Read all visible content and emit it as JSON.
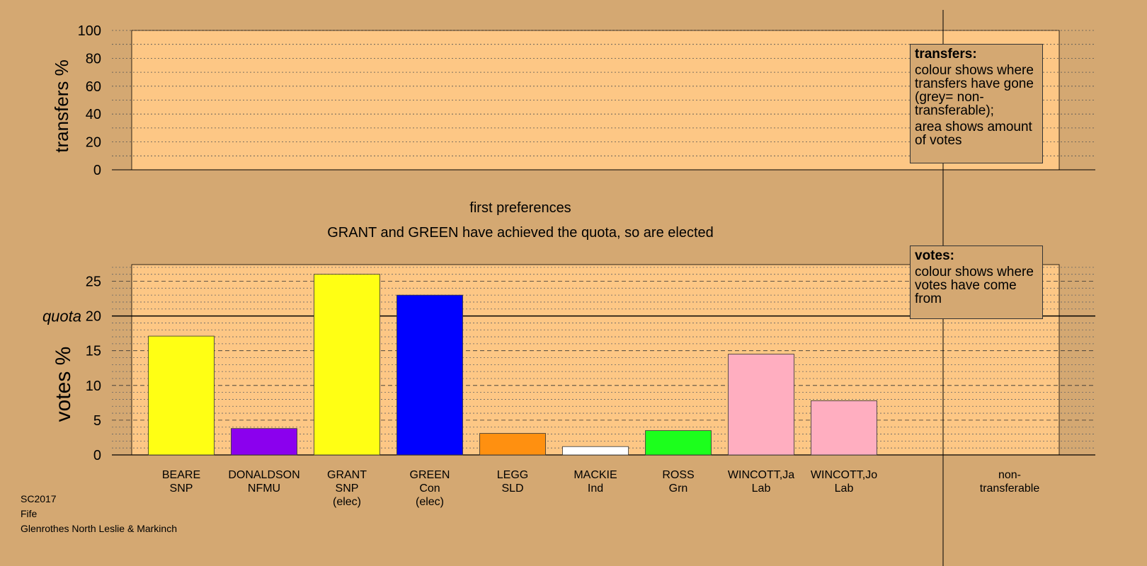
{
  "page": {
    "subtitle": "first preferences",
    "message": "GRANT and GREEN have achieved the quota, so are elected"
  },
  "legend_transfers": {
    "title": "transfers:",
    "line1": "colour shows where transfers have gone (grey= non-transferable);",
    "line2": "area shows amount of votes"
  },
  "legend_votes": {
    "title": "votes:",
    "line1": "colour shows where votes have come from"
  },
  "footer": {
    "election": "SC2017",
    "council": "Fife",
    "ward": "Glenrothes North Leslie & Markinch"
  },
  "colors": {
    "background": "#d4a872",
    "plot_background": "#fdc785",
    "snp": "#ffff14",
    "nfmu": "#8b00ee",
    "con": "#0000ff",
    "sld": "#ff9010",
    "ind": "#ffffff",
    "grn": "#1cff1c",
    "lab": "#ffaec0"
  },
  "chart_data": [
    {
      "type": "bar",
      "title": "",
      "ylabel": "transfers %",
      "ylim": [
        0,
        100
      ],
      "yticks": [
        0,
        20,
        40,
        60,
        80,
        100
      ],
      "categories": [],
      "values": [],
      "grid": true
    },
    {
      "type": "bar",
      "title": "",
      "ylabel": "votes %",
      "ylim": [
        0,
        27
      ],
      "yticks": [
        0,
        5,
        10,
        15,
        20,
        25
      ],
      "quota": 20,
      "quota_label": "quota",
      "grid": true,
      "categories": [
        {
          "name": "BEARE",
          "party": "SNP",
          "status": "",
          "value": 17.1,
          "color": "#ffff14"
        },
        {
          "name": "DONALDSON",
          "party": "NFMU",
          "status": "",
          "value": 3.8,
          "color": "#8b00ee"
        },
        {
          "name": "GRANT",
          "party": "SNP",
          "status": "(elec)",
          "value": 26.0,
          "color": "#ffff14"
        },
        {
          "name": "GREEN",
          "party": "Con",
          "status": "(elec)",
          "value": 23.0,
          "color": "#0000ff"
        },
        {
          "name": "LEGG",
          "party": "SLD",
          "status": "",
          "value": 3.1,
          "color": "#ff9010"
        },
        {
          "name": "MACKIE",
          "party": "Ind",
          "status": "",
          "value": 1.2,
          "color": "#ffffff"
        },
        {
          "name": "ROSS",
          "party": "Grn",
          "status": "",
          "value": 3.5,
          "color": "#1cff1c"
        },
        {
          "name": "WINCOTT,Ja",
          "party": "Lab",
          "status": "",
          "value": 14.5,
          "color": "#ffaec0"
        },
        {
          "name": "WINCOTT,Jo",
          "party": "Lab",
          "status": "",
          "value": 7.8,
          "color": "#ffaec0"
        }
      ],
      "nontransferable_label": [
        "non-",
        "transferable"
      ]
    }
  ]
}
